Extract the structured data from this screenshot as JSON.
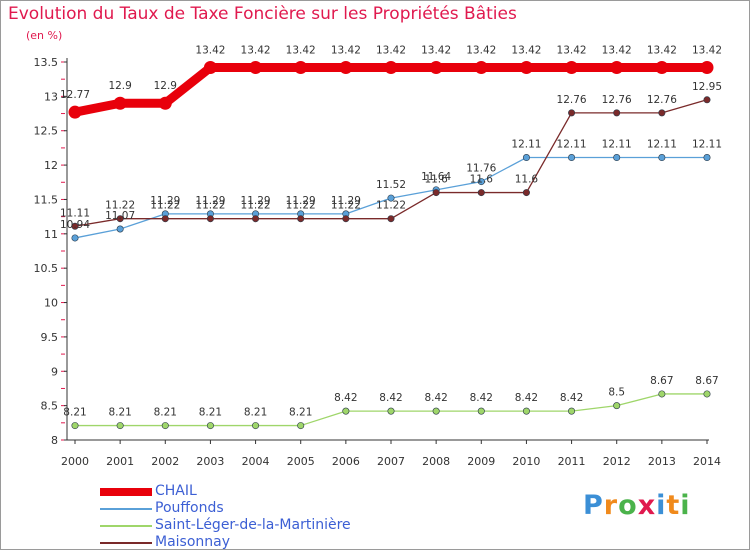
{
  "page": {
    "title": "Evolution du Taux de Taxe Foncière sur les Propriétés Bâties",
    "subtitle": "(en %)"
  },
  "logo": {
    "letters": [
      "P",
      "r",
      "o",
      "x",
      "i",
      "t",
      "i"
    ],
    "colors": [
      "#3b8fd6",
      "#f08a1c",
      "#4bb34b",
      "#e0194e",
      "#3b8fd6",
      "#f08a1c",
      "#4bb34b"
    ]
  },
  "chart_data": {
    "type": "line",
    "title": "Evolution du Taux de Taxe Foncière sur les Propriétés Bâties",
    "ylabel": "(en %)",
    "xlabel": "",
    "x": [
      "2000",
      "2001",
      "2002",
      "2003",
      "2004",
      "2005",
      "2006",
      "2007",
      "2008",
      "2009",
      "2010",
      "2011",
      "2012",
      "2013",
      "2014"
    ],
    "ylim": [
      8,
      13.5
    ],
    "yticks": [
      "8",
      "8.5",
      "9",
      "9.5",
      "10",
      "10.5",
      "11",
      "11.5",
      "12",
      "12.5",
      "13",
      "13.5"
    ],
    "legend_position": "bottom-left",
    "series": [
      {
        "name": "CHAIL",
        "color": "#e8000b",
        "values": [
          12.77,
          12.9,
          12.9,
          13.42,
          13.42,
          13.42,
          13.42,
          13.42,
          13.42,
          13.42,
          13.42,
          13.42,
          13.42,
          13.42,
          13.42
        ],
        "labels": [
          "12.77",
          "12.9",
          "12.9",
          "13.42",
          "13.42",
          "13.42",
          "13.42",
          "13.42",
          "13.42",
          "13.42",
          "13.42",
          "13.42",
          "13.42",
          "13.42",
          "13.42"
        ]
      },
      {
        "name": "Pouffonds",
        "color": "#5aa0d8",
        "values": [
          10.94,
          11.07,
          11.29,
          11.29,
          11.29,
          11.29,
          11.29,
          11.52,
          11.64,
          11.76,
          12.11,
          12.11,
          12.11,
          12.11,
          12.11
        ],
        "labels": [
          "10.94",
          "11.07",
          "11.29",
          "11.29",
          "11.29",
          "11.29",
          "11.29",
          "11.52",
          "11.64",
          "11.76",
          "12.11",
          "12.11",
          "12.11",
          "12.11",
          "12.11"
        ]
      },
      {
        "name": "Saint-Léger-de-la-Martinière",
        "color": "#9fd66a",
        "values": [
          8.21,
          8.21,
          8.21,
          8.21,
          8.21,
          8.21,
          8.42,
          8.42,
          8.42,
          8.42,
          8.42,
          8.42,
          8.5,
          8.67,
          8.67
        ],
        "labels": [
          "8.21",
          "8.21",
          "8.21",
          "8.21",
          "8.21",
          "8.21",
          "8.42",
          "8.42",
          "8.42",
          "8.42",
          "8.42",
          "8.42",
          "8.5",
          "8.67",
          "8.67"
        ]
      },
      {
        "name": "Maisonnay",
        "color": "#7a2a2a",
        "values": [
          11.11,
          11.22,
          11.22,
          11.22,
          11.22,
          11.22,
          11.22,
          11.22,
          11.6,
          11.6,
          11.6,
          12.76,
          12.76,
          12.76,
          12.95
        ],
        "labels": [
          "11.11",
          "11.22",
          "11.22",
          "11.22",
          "11.22",
          "11.22",
          "11.22",
          "11.22",
          "11.6",
          "11.6",
          "11.6",
          "12.76",
          "12.76",
          "12.76",
          "12.95"
        ]
      }
    ]
  }
}
